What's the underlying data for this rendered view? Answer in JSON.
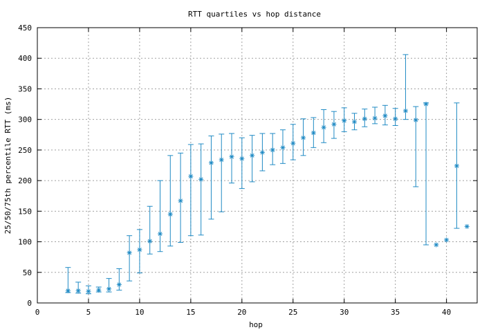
{
  "chart_data": {
    "type": "scatter",
    "title": "RTT quartiles vs hop distance",
    "xlabel": "hop",
    "ylabel": "25/50/75th percentile RTT (ms)",
    "xlim": [
      0,
      43
    ],
    "ylim": [
      0,
      450
    ],
    "xticks": [
      0,
      5,
      10,
      15,
      20,
      25,
      30,
      35,
      40
    ],
    "yticks": [
      0,
      50,
      100,
      150,
      200,
      250,
      300,
      350,
      400,
      450
    ],
    "grid": true,
    "series_color": "#1f8ac4",
    "points": [
      {
        "x": 3,
        "median": 20,
        "low": 17,
        "high": 58
      },
      {
        "x": 4,
        "median": 20,
        "low": 16,
        "high": 34
      },
      {
        "x": 5,
        "median": 19,
        "low": 15,
        "high": 28
      },
      {
        "x": 6,
        "median": 21,
        "low": 18,
        "high": 26
      },
      {
        "x": 7,
        "median": 23,
        "low": 18,
        "high": 40
      },
      {
        "x": 8,
        "median": 30,
        "low": 21,
        "high": 56
      },
      {
        "x": 9,
        "median": 82,
        "low": 36,
        "high": 110
      },
      {
        "x": 10,
        "median": 87,
        "low": 49,
        "high": 120
      },
      {
        "x": 11,
        "median": 101,
        "low": 80,
        "high": 158
      },
      {
        "x": 12,
        "median": 113,
        "low": 84,
        "high": 200
      },
      {
        "x": 13,
        "median": 145,
        "low": 93,
        "high": 241
      },
      {
        "x": 14,
        "median": 167,
        "low": 99,
        "high": 245
      },
      {
        "x": 15,
        "median": 207,
        "low": 110,
        "high": 259
      },
      {
        "x": 16,
        "median": 202,
        "low": 111,
        "high": 260
      },
      {
        "x": 17,
        "median": 229,
        "low": 137,
        "high": 273
      },
      {
        "x": 18,
        "median": 234,
        "low": 149,
        "high": 276
      },
      {
        "x": 19,
        "median": 239,
        "low": 196,
        "high": 277
      },
      {
        "x": 20,
        "median": 236,
        "low": 187,
        "high": 270
      },
      {
        "x": 21,
        "median": 241,
        "low": 198,
        "high": 274
      },
      {
        "x": 22,
        "median": 246,
        "low": 216,
        "high": 277
      },
      {
        "x": 23,
        "median": 250,
        "low": 226,
        "high": 277
      },
      {
        "x": 24,
        "median": 254,
        "low": 228,
        "high": 283
      },
      {
        "x": 25,
        "median": 261,
        "low": 234,
        "high": 292
      },
      {
        "x": 26,
        "median": 270,
        "low": 241,
        "high": 301
      },
      {
        "x": 27,
        "median": 278,
        "low": 254,
        "high": 303
      },
      {
        "x": 28,
        "median": 287,
        "low": 262,
        "high": 316
      },
      {
        "x": 29,
        "median": 292,
        "low": 269,
        "high": 313
      },
      {
        "x": 30,
        "median": 298,
        "low": 280,
        "high": 319
      },
      {
        "x": 31,
        "median": 296,
        "low": 283,
        "high": 310
      },
      {
        "x": 32,
        "median": 301,
        "low": 288,
        "high": 317
      },
      {
        "x": 33,
        "median": 302,
        "low": 293,
        "high": 320
      },
      {
        "x": 34,
        "median": 306,
        "low": 291,
        "high": 323
      },
      {
        "x": 35,
        "median": 301,
        "low": 290,
        "high": 318
      },
      {
        "x": 36,
        "median": 314,
        "low": 300,
        "high": 406
      },
      {
        "x": 37,
        "median": 299,
        "low": 190,
        "high": 321
      },
      {
        "x": 38,
        "median": 325,
        "low": 95,
        "high": 327
      },
      {
        "x": 39,
        "median": 95,
        "low": 95,
        "high": 95
      },
      {
        "x": 40,
        "median": 103,
        "low": 103,
        "high": 103
      },
      {
        "x": 41,
        "median": 224,
        "low": 122,
        "high": 327
      },
      {
        "x": 42,
        "median": 125,
        "low": 125,
        "high": 125
      }
    ]
  }
}
